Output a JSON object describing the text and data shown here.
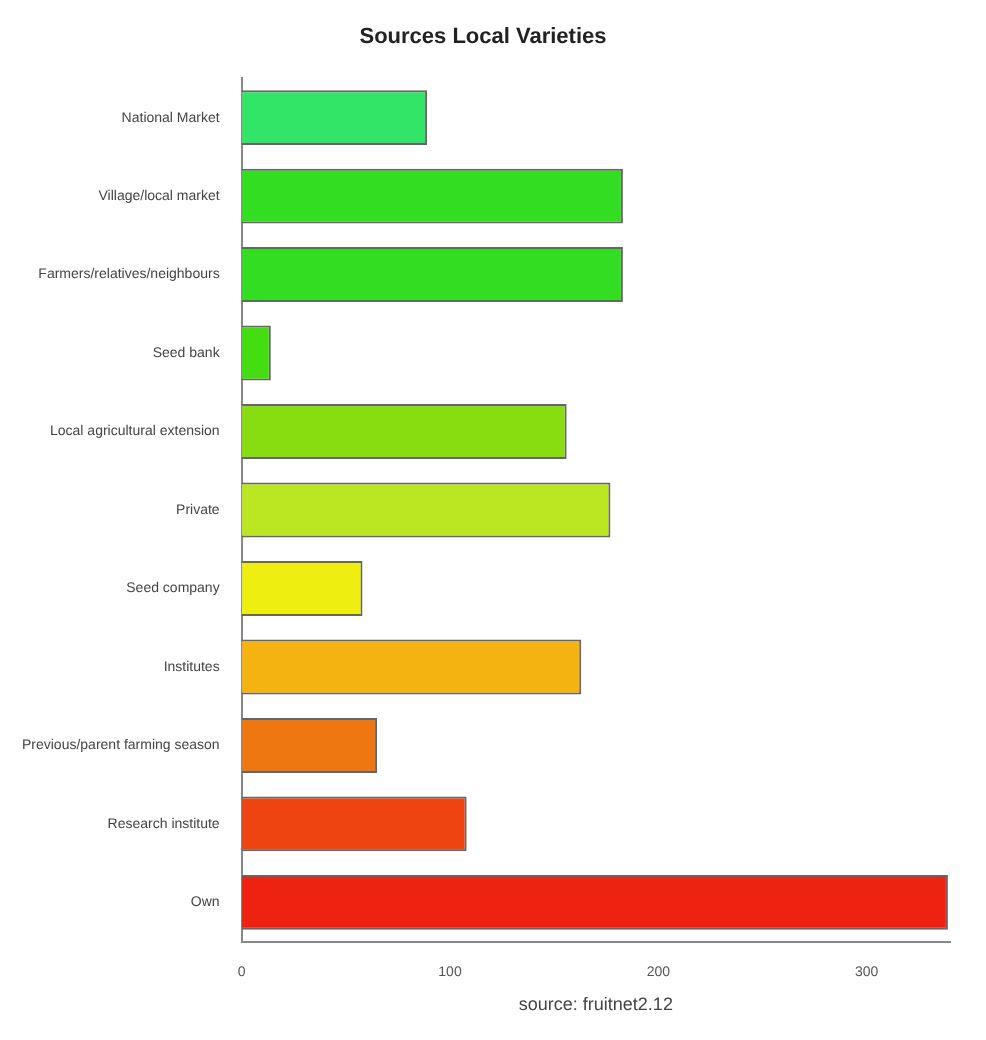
{
  "chart_data": {
    "type": "bar",
    "orientation": "horizontal",
    "title": "Sources Local Varieties",
    "xlabel": "source: fruitnet2.12",
    "categories": [
      "National Market",
      "Village/local market",
      "Farmers/relatives/neighbours",
      "Seed bank",
      "Local agricultural extension",
      "Private",
      "Seed company",
      "Institutes",
      "Previous/parent farming season",
      "Research institute",
      "Own"
    ],
    "values": [
      89,
      183,
      183,
      14,
      156,
      177,
      58,
      163,
      65,
      108,
      339
    ],
    "colors": [
      "#33e566",
      "#33dd22",
      "#33dd22",
      "#44dd11",
      "#88dd11",
      "#bbe622",
      "#eeee11",
      "#f5b311",
      "#ee7711",
      "#ee4411",
      "#ee2211"
    ],
    "xlim": [
      0,
      340
    ],
    "xticks": [
      0,
      100,
      200,
      300
    ],
    "grid": false,
    "legend": false
  }
}
